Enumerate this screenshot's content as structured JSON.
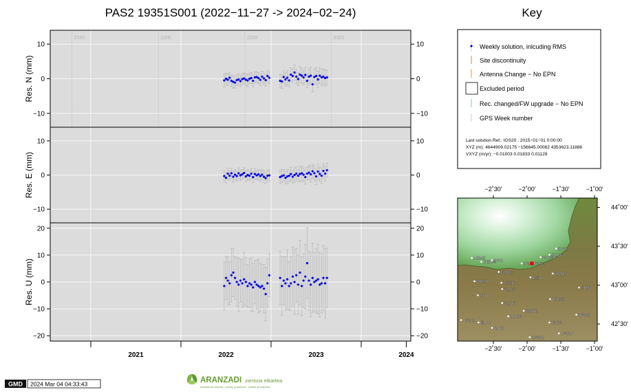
{
  "title": "PAS2 19351S001 (2022−11−27 -> 2024−02−24)",
  "key_title": "Key",
  "legend": {
    "items": [
      "Weekly solution, inlcuding RMS",
      "Site discontinuity",
      "Antenna Change − No EPN",
      "Excluded period",
      "Rec. changed/FW upgrade − No EPN",
      "GPS Week number"
    ],
    "colors": [
      "#0000ee",
      "#ff8080",
      "#ffaa00",
      "#000000",
      "#88e0a0",
      "#bbbbbb"
    ],
    "solution_lines": [
      "Last solution Ref.: IGS20 , 2015−01−01  0:00:00",
      "XYZ (m):  4644909.02175  −156645.00082  4353623.11886",
      "VXYZ (m/yr):      −0.01003        0.01833        0.01129"
    ]
  },
  "footer": {
    "timestamp": "2024 Mar 04 04:33:43",
    "gmd_logo": "GMD",
    "brand": "ARANZADI",
    "brand_sub": "zientzia elkartea",
    "brand_tag": "sociedad de ciencias · society of sciences · société de sciences"
  },
  "chart_data": [
    {
      "type": "scatter",
      "ylabel": "Res. N (mm)",
      "ylim": [
        -14,
        14
      ],
      "yticks": [
        -10,
        0,
        10
      ],
      "xlim": [
        2020.55,
        2024.55
      ],
      "x": [
        2022.48,
        2022.5,
        2022.52,
        2022.54,
        2022.56,
        2022.58,
        2022.6,
        2022.62,
        2022.64,
        2022.66,
        2022.68,
        2022.7,
        2022.72,
        2022.74,
        2022.76,
        2022.78,
        2022.8,
        2022.82,
        2022.84,
        2022.86,
        2022.88,
        2022.9,
        2022.92,
        2022.94,
        2022.96,
        2022.98,
        2023.1,
        2023.12,
        2023.14,
        2023.16,
        2023.18,
        2023.2,
        2023.22,
        2023.24,
        2023.26,
        2023.28,
        2023.3,
        2023.32,
        2023.34,
        2023.36,
        2023.38,
        2023.4,
        2023.42,
        2023.44,
        2023.46,
        2023.48,
        2023.5,
        2023.52,
        2023.54,
        2023.56,
        2023.58,
        2023.6,
        2023.62
      ],
      "y": [
        -0.5,
        0,
        -0.3,
        0.3,
        -0.6,
        -0.9,
        -1.1,
        -0.4,
        -0.2,
        -0.7,
        -0.1,
        0.1,
        -0.3,
        -0.5,
        0,
        0.2,
        -0.6,
        0.4,
        0.5,
        0.2,
        -0.3,
        0.6,
        0.1,
        -0.4,
        0.8,
        0.3,
        -0.6,
        -0.8,
        0.5,
        -0.2,
        0.3,
        -0.5,
        1.2,
        0.8,
        1.8,
        0.6,
        -0.1,
        1.2,
        0.9,
        0.4,
        1.1,
        -0.6,
        0.6,
        0.9,
        -1.6,
        0.5,
        0.8,
        -0.2,
        0.9,
        0.4,
        0.6,
        0.2,
        0.4
      ],
      "err": [
        1.8,
        1.6,
        1.7,
        1.5,
        1.7,
        1.8,
        1.6,
        1.5,
        1.7,
        1.6,
        1.5,
        1.6,
        1.7,
        1.8,
        1.5,
        1.6,
        1.7,
        1.6,
        1.5,
        1.6,
        1.7,
        1.6,
        1.8,
        1.7,
        1.6,
        1.7,
        1.9,
        2.0,
        1.8,
        1.9,
        2.1,
        1.8,
        2.0,
        1.9,
        2.2,
        2.1,
        1.9,
        2.3,
        2.2,
        2.1,
        2.2,
        2.0,
        2.3,
        2.4,
        2.2,
        2.3,
        2.5,
        2.4,
        2.3,
        2.4,
        2.2,
        2.3,
        2.1
      ],
      "gps_weeks": [
        {
          "x": 2020.79,
          "label": "2150"
        },
        {
          "x": 2021.75,
          "label": "2200"
        },
        {
          "x": 2022.71,
          "label": "2250"
        },
        {
          "x": 2023.67,
          "label": "2300"
        }
      ]
    },
    {
      "type": "scatter",
      "ylabel": "Res. E (mm)",
      "ylim": [
        -14,
        14
      ],
      "yticks": [
        -10,
        0,
        10
      ],
      "xlim": [
        2020.55,
        2024.55
      ],
      "x": [
        2022.48,
        2022.5,
        2022.52,
        2022.54,
        2022.56,
        2022.58,
        2022.6,
        2022.62,
        2022.64,
        2022.66,
        2022.68,
        2022.7,
        2022.72,
        2022.74,
        2022.76,
        2022.78,
        2022.8,
        2022.82,
        2022.84,
        2022.86,
        2022.88,
        2022.9,
        2022.92,
        2022.94,
        2022.96,
        2022.98,
        2023.1,
        2023.12,
        2023.14,
        2023.16,
        2023.18,
        2023.2,
        2023.22,
        2023.24,
        2023.26,
        2023.28,
        2023.3,
        2023.32,
        2023.34,
        2023.36,
        2023.38,
        2023.4,
        2023.42,
        2023.44,
        2023.46,
        2023.48,
        2023.5,
        2023.52,
        2023.54,
        2023.56,
        2023.58,
        2023.6,
        2023.62
      ],
      "y": [
        -0.3,
        -0.8,
        0.4,
        -0.2,
        0.5,
        -0.5,
        0.1,
        -0.3,
        0.5,
        -0.1,
        0.2,
        0.6,
        -0.4,
        0,
        -0.2,
        0.4,
        -0.6,
        0.3,
        -0.1,
        0.2,
        -0.3,
        0.1,
        -0.5,
        -0.9,
        -0.2,
        -0.1,
        -0.6,
        -0.3,
        -0.1,
        -0.8,
        -0.4,
        -0.2,
        0.3,
        -0.5,
        0,
        0.4,
        -0.2,
        0.3,
        0.5,
        0.1,
        -0.6,
        0.4,
        0.7,
        0.2,
        1.1,
        0.5,
        -0.4,
        1,
        0.3,
        -0.2,
        1.2,
        0.4,
        1.4
      ],
      "err": [
        1.6,
        1.5,
        1.6,
        1.4,
        1.5,
        1.6,
        1.5,
        1.4,
        1.6,
        1.5,
        1.4,
        1.5,
        1.6,
        1.5,
        1.4,
        1.5,
        1.6,
        1.5,
        1.4,
        1.5,
        1.6,
        1.5,
        1.7,
        1.6,
        1.5,
        1.6,
        1.8,
        1.9,
        1.7,
        1.8,
        2.0,
        1.7,
        1.9,
        1.8,
        2.1,
        2.0,
        1.8,
        2.2,
        2.1,
        2.0,
        2.1,
        1.9,
        2.2,
        2.3,
        2.1,
        2.2,
        2.4,
        2.3,
        2.2,
        2.3,
        2.1,
        2.2,
        2.0
      ]
    },
    {
      "type": "scatter",
      "ylabel": "Res. U (mm)",
      "ylim": [
        -22,
        22
      ],
      "yticks": [
        -20,
        -10,
        0,
        10,
        20
      ],
      "xlim": [
        2020.55,
        2024.55
      ],
      "xticks": [
        {
          "x": 2021,
          "label": "2021"
        },
        {
          "x": 2022,
          "label": "2022"
        },
        {
          "x": 2023,
          "label": "2023"
        },
        {
          "x": 2024,
          "label": "2024"
        }
      ],
      "x": [
        2022.48,
        2022.5,
        2022.52,
        2022.54,
        2022.56,
        2022.58,
        2022.6,
        2022.62,
        2022.64,
        2022.66,
        2022.68,
        2022.7,
        2022.72,
        2022.74,
        2022.76,
        2022.78,
        2022.8,
        2022.82,
        2022.84,
        2022.86,
        2022.88,
        2022.9,
        2022.92,
        2022.94,
        2022.96,
        2022.98,
        2023.1,
        2023.12,
        2023.14,
        2023.16,
        2023.18,
        2023.2,
        2023.22,
        2023.24,
        2023.26,
        2023.28,
        2023.3,
        2023.32,
        2023.34,
        2023.36,
        2023.38,
        2023.4,
        2023.42,
        2023.44,
        2023.46,
        2023.48,
        2023.5,
        2023.52,
        2023.54,
        2023.56,
        2023.58,
        2023.6,
        2023.62
      ],
      "y": [
        -1.5,
        1.5,
        0.5,
        -0.5,
        2.5,
        3.5,
        1.5,
        0,
        -1,
        0.5,
        -0.5,
        1,
        0,
        -1.5,
        -0.5,
        -1,
        -2,
        0,
        -1,
        -1.5,
        -2,
        -1.5,
        -2.5,
        -4.5,
        -0.5,
        2.5,
        1.5,
        -1.5,
        0.5,
        -0.5,
        1,
        -1.5,
        -0.5,
        2,
        0,
        2.5,
        -1,
        3.5,
        -1.5,
        0.5,
        2,
        7,
        0.5,
        -1,
        1.5,
        0,
        0.5,
        1,
        -1,
        -0.5,
        1.5,
        -0.5,
        1.5
      ],
      "err": [
        9,
        8,
        9,
        8,
        10,
        9,
        8,
        9,
        10,
        8,
        9,
        10,
        9,
        8,
        9,
        10,
        9,
        8,
        9,
        10,
        9,
        8,
        9,
        10,
        9,
        8,
        10,
        11,
        9,
        10,
        11,
        9,
        10,
        11,
        12,
        10,
        11,
        12,
        11,
        10,
        12,
        13,
        11,
        12,
        13,
        11,
        12,
        13,
        12,
        11,
        12,
        13,
        11
      ]
    }
  ],
  "map": {
    "top_ticks": [
      "−2˚30'",
      "−2˚00'",
      "−1˚30'",
      "−1˚00'"
    ],
    "bottom_ticks": [
      "−2˚30'",
      "−2˚00'",
      "−1˚30'",
      "−1˚00'"
    ],
    "right_ticks": [
      "44˚00'",
      "43˚30'",
      "43˚00'",
      "42˚30'"
    ],
    "stations": [
      {
        "name": "LEMZ",
        "lon": -2.82,
        "lat": 43.35
      },
      {
        "name": "GERN",
        "lon": -2.68,
        "lat": 43.3
      },
      {
        "name": "SPS",
        "lon": -2.52,
        "lat": 43.32
      },
      {
        "name": "IGLD",
        "lon": -2.08,
        "lat": 43.28
      },
      {
        "name": "PAS2",
        "lon": -1.93,
        "lat": 43.28,
        "highlight": true
      },
      {
        "name": "HOND",
        "lon": -1.8,
        "lat": 43.36
      },
      {
        "name": "SCOA",
        "lon": -1.67,
        "lat": 43.39
      },
      {
        "name": "BIAZ",
        "lon": -1.57,
        "lat": 43.47
      },
      {
        "name": "ELGE",
        "lon": -2.42,
        "lat": 43.17
      },
      {
        "name": "LEIT",
        "lon": -1.95,
        "lat": 43.1
      },
      {
        "name": "DRON",
        "lon": -1.62,
        "lat": 43.15
      },
      {
        "name": "BRZR",
        "lon": -2.78,
        "lat": 43.05
      },
      {
        "name": "LAZK",
        "lon": -2.38,
        "lat": 43.03
      },
      {
        "name": "ARIB",
        "lon": -1.23,
        "lat": 42.97
      },
      {
        "name": "ALSA",
        "lon": -2.37,
        "lat": 42.95
      },
      {
        "name": "VITO",
        "lon": -2.73,
        "lat": 42.87
      },
      {
        "name": "UPNA",
        "lon": -1.66,
        "lat": 42.82
      },
      {
        "name": "ALDA",
        "lon": -2.37,
        "lat": 42.77
      },
      {
        "name": "ESTE",
        "lon": -2.05,
        "lat": 42.67
      },
      {
        "name": "LOSA",
        "lon": -2.28,
        "lat": 42.6
      },
      {
        "name": "SANS",
        "lon": -1.27,
        "lat": 42.62
      },
      {
        "name": "CAS0",
        "lon": -2.98,
        "lat": 42.55
      },
      {
        "name": "ELCI",
        "lon": -2.72,
        "lat": 42.52
      },
      {
        "name": "TAFA",
        "lon": -1.67,
        "lat": 42.52
      },
      {
        "name": "RIO1",
        "lon": -2.52,
        "lat": 42.45
      },
      {
        "name": "CARC",
        "lon": -1.53,
        "lat": 42.38
      },
      {
        "name": "SANR",
        "lon": -1.96,
        "lat": 42.33
      }
    ]
  }
}
